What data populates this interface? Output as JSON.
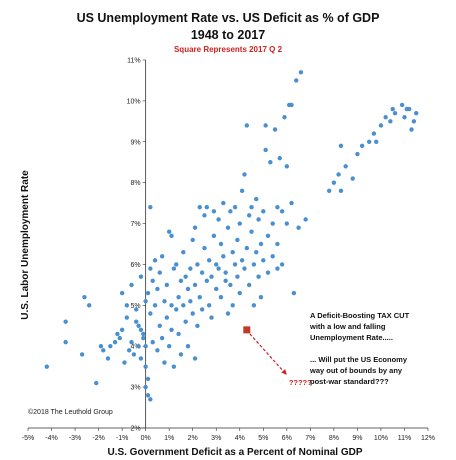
{
  "chart_data": {
    "type": "scatter",
    "title": "US Unemployment Rate vs. US Deficit as % of GDP",
    "title_line2": "1948 to 2017",
    "subtitle": "Square Represents 2017 Q 2",
    "xlabel": "U.S. Government Deficit as a Percent of Nominal GDP",
    "ylabel": "U.S. Labor Unemployment Rate",
    "xlim": [
      -5,
      12
    ],
    "ylim": [
      2,
      11
    ],
    "x_ticks": [
      -5,
      -4,
      -3,
      -2,
      -1,
      0,
      1,
      2,
      3,
      4,
      5,
      6,
      7,
      8,
      9,
      10,
      11,
      12
    ],
    "y_ticks": [
      2,
      3,
      4,
      5,
      6,
      7,
      8,
      9,
      10,
      11
    ],
    "x_tick_labels": [
      "-5%",
      "-4%",
      "-3%",
      "-2%",
      "-1%",
      "0%",
      "1%",
      "2%",
      "3%",
      "4%",
      "5%",
      "6%",
      "7%",
      "8%",
      "9%",
      "10%",
      "11%",
      "12%"
    ],
    "y_tick_labels": [
      "2%",
      "3%",
      "4%",
      "5%",
      "6%",
      "7%",
      "8%",
      "9%",
      "10%",
      "11%"
    ],
    "grid": false,
    "point_color": "#4a90d0",
    "highlight_color": "#c0392b",
    "highlight_point": {
      "x": 4.3,
      "y": 4.4
    },
    "arrow_to": {
      "x": 6.0,
      "y": 3.3
    },
    "arrow_label": "?????",
    "annotation_lines": [
      "A Deficit-Boosting TAX CUT",
      "with a low and falling",
      "Unemployment Rate.....",
      "",
      "... Will put the US Economy",
      "way out of bounds by any",
      "post-war standard???"
    ],
    "copyright": "©2018 The Leuthold Group",
    "points": [
      [
        -4.2,
        3.5
      ],
      [
        -3.4,
        4.6
      ],
      [
        -3.4,
        4.1
      ],
      [
        -2.7,
        3.8
      ],
      [
        -2.6,
        5.2
      ],
      [
        -2.4,
        5.0
      ],
      [
        -2.1,
        3.1
      ],
      [
        -1.9,
        4.0
      ],
      [
        -1.8,
        3.9
      ],
      [
        -1.6,
        3.7
      ],
      [
        -1.5,
        4.0
      ],
      [
        -1.3,
        4.1
      ],
      [
        -1.2,
        4.3
      ],
      [
        -1.1,
        4.2
      ],
      [
        -1.0,
        4.4
      ],
      [
        -0.9,
        3.6
      ],
      [
        -0.8,
        4.7
      ],
      [
        -0.7,
        3.9
      ],
      [
        -0.6,
        4.1
      ],
      [
        -0.5,
        3.8
      ],
      [
        -0.4,
        4.6
      ],
      [
        -0.3,
        4.5
      ],
      [
        -0.3,
        4.0
      ],
      [
        -0.2,
        3.7
      ],
      [
        -0.1,
        4.2
      ],
      [
        0.0,
        3.0
      ],
      [
        0.0,
        3.5
      ],
      [
        0.1,
        2.8
      ],
      [
        0.1,
        3.2
      ],
      [
        0.2,
        2.7
      ],
      [
        -1.0,
        5.3
      ],
      [
        -0.8,
        5.0
      ],
      [
        -0.6,
        5.5
      ],
      [
        -0.4,
        4.9
      ],
      [
        -0.2,
        5.7
      ],
      [
        -0.1,
        4.3
      ],
      [
        0.0,
        4.0
      ],
      [
        0.0,
        5.1
      ],
      [
        0.1,
        5.3
      ],
      [
        0.2,
        5.9
      ],
      [
        0.2,
        4.8
      ],
      [
        0.3,
        4.1
      ],
      [
        0.3,
        5.6
      ],
      [
        0.4,
        5.0
      ],
      [
        0.4,
        6.1
      ],
      [
        0.5,
        3.9
      ],
      [
        0.5,
        5.4
      ],
      [
        0.6,
        4.5
      ],
      [
        0.6,
        5.8
      ],
      [
        0.7,
        4.2
      ],
      [
        0.7,
        6.2
      ],
      [
        0.8,
        5.1
      ],
      [
        0.8,
        3.6
      ],
      [
        0.9,
        4.7
      ],
      [
        0.9,
        5.5
      ],
      [
        1.0,
        4.0
      ],
      [
        1.0,
        6.8
      ],
      [
        1.1,
        5.0
      ],
      [
        1.1,
        4.4
      ],
      [
        1.2,
        5.9
      ],
      [
        1.2,
        3.5
      ],
      [
        1.3,
        4.9
      ],
      [
        1.3,
        6.0
      ],
      [
        1.4,
        4.3
      ],
      [
        1.4,
        5.2
      ],
      [
        1.5,
        5.6
      ],
      [
        1.5,
        3.8
      ],
      [
        1.6,
        5.0
      ],
      [
        1.6,
        6.3
      ],
      [
        1.7,
        4.6
      ],
      [
        1.7,
        5.7
      ],
      [
        1.8,
        5.4
      ],
      [
        1.8,
        4.0
      ],
      [
        1.9,
        5.9
      ],
      [
        1.9,
        5.1
      ],
      [
        2.0,
        6.6
      ],
      [
        2.0,
        4.8
      ],
      [
        2.1,
        5.5
      ],
      [
        2.1,
        3.7
      ],
      [
        2.2,
        6.0
      ],
      [
        2.2,
        4.5
      ],
      [
        2.3,
        7.4
      ],
      [
        2.3,
        5.2
      ],
      [
        2.4,
        5.8
      ],
      [
        2.4,
        4.9
      ],
      [
        2.5,
        6.4
      ],
      [
        2.5,
        7.2
      ],
      [
        2.6,
        5.6
      ],
      [
        2.6,
        7.4
      ],
      [
        2.7,
        6.1
      ],
      [
        2.7,
        5.0
      ],
      [
        2.8,
        5.7
      ],
      [
        2.8,
        4.7
      ],
      [
        2.9,
        6.7
      ],
      [
        2.9,
        7.3
      ],
      [
        3.0,
        6.0
      ],
      [
        3.0,
        5.4
      ],
      [
        3.1,
        7.1
      ],
      [
        3.1,
        5.9
      ],
      [
        3.2,
        6.5
      ],
      [
        3.2,
        5.2
      ],
      [
        3.3,
        7.5
      ],
      [
        3.3,
        6.2
      ],
      [
        3.4,
        5.6
      ],
      [
        3.4,
        5.8
      ],
      [
        3.5,
        6.9
      ],
      [
        3.5,
        4.8
      ],
      [
        3.6,
        7.3
      ],
      [
        3.6,
        5.5
      ],
      [
        3.7,
        6.3
      ],
      [
        3.7,
        5.0
      ],
      [
        3.8,
        7.4
      ],
      [
        3.8,
        6.0
      ],
      [
        3.9,
        5.7
      ],
      [
        3.9,
        6.6
      ],
      [
        4.0,
        7.0
      ],
      [
        4.0,
        5.3
      ],
      [
        4.1,
        6.1
      ],
      [
        4.1,
        7.8
      ],
      [
        4.2,
        5.9
      ],
      [
        4.2,
        8.2
      ],
      [
        4.3,
        9.4
      ],
      [
        4.3,
        6.4
      ],
      [
        4.4,
        7.2
      ],
      [
        4.4,
        5.5
      ],
      [
        4.5,
        6.8
      ],
      [
        4.5,
        7.4
      ],
      [
        4.6,
        6.0
      ],
      [
        4.6,
        5.0
      ],
      [
        4.7,
        7.6
      ],
      [
        4.7,
        6.3
      ],
      [
        4.8,
        5.7
      ],
      [
        4.8,
        7.1
      ],
      [
        4.9,
        6.5
      ],
      [
        4.9,
        5.2
      ],
      [
        5.0,
        7.3
      ],
      [
        5.0,
        6.1
      ],
      [
        5.1,
        8.8
      ],
      [
        5.2,
        6.7
      ],
      [
        5.2,
        5.8
      ],
      [
        5.3,
        8.5
      ],
      [
        5.4,
        7.0
      ],
      [
        5.4,
        6.2
      ],
      [
        5.5,
        9.3
      ],
      [
        5.6,
        7.4
      ],
      [
        5.6,
        6.5
      ],
      [
        5.7,
        8.6
      ],
      [
        5.8,
        7.3
      ],
      [
        5.8,
        6.0
      ],
      [
        5.9,
        9.6
      ],
      [
        6.0,
        7.0
      ],
      [
        6.0,
        8.4
      ],
      [
        6.1,
        9.9
      ],
      [
        6.2,
        7.5
      ],
      [
        6.3,
        5.3
      ],
      [
        6.4,
        10.5
      ],
      [
        6.5,
        6.9
      ],
      [
        6.6,
        10.7
      ],
      [
        6.2,
        9.9
      ],
      [
        5.1,
        9.4
      ],
      [
        7.8,
        7.8
      ],
      [
        8.0,
        8.0
      ],
      [
        8.2,
        8.2
      ],
      [
        8.3,
        7.8
      ],
      [
        8.5,
        8.4
      ],
      [
        8.8,
        8.1
      ],
      [
        9.0,
        8.7
      ],
      [
        9.2,
        8.9
      ],
      [
        9.5,
        9.0
      ],
      [
        9.7,
        9.2
      ],
      [
        10.0,
        9.4
      ],
      [
        10.2,
        9.6
      ],
      [
        10.4,
        9.5
      ],
      [
        10.6,
        9.7
      ],
      [
        10.9,
        9.9
      ],
      [
        11.0,
        9.6
      ],
      [
        11.2,
        9.8
      ],
      [
        11.3,
        9.3
      ],
      [
        11.4,
        9.5
      ],
      [
        11.5,
        9.7
      ],
      [
        8.3,
        8.9
      ],
      [
        9.8,
        9.0
      ],
      [
        10.5,
        9.8
      ],
      [
        11.1,
        9.8
      ],
      [
        6.8,
        7.1
      ],
      [
        0.2,
        7.4
      ],
      [
        -0.2,
        4.4
      ],
      [
        1.1,
        6.7
      ],
      [
        2.1,
        6.9
      ],
      [
        5.6,
        5.9
      ]
    ]
  }
}
